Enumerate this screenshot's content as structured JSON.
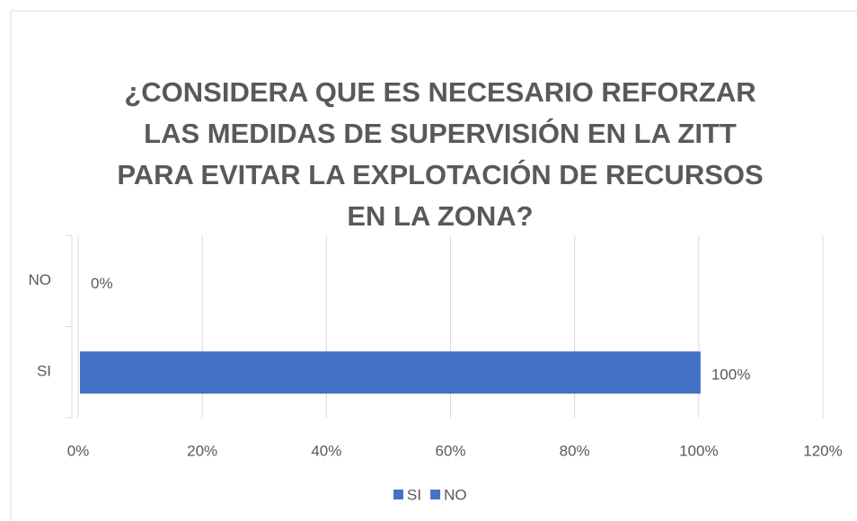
{
  "chart_data": {
    "type": "bar",
    "orientation": "horizontal",
    "title": "¿CONSIDERA QUE ES NECESARIO REFORZAR LAS MEDIDAS DE SUPERVISIÓN EN LA ZITT PARA EVITAR LA EXPLOTACIÓN DE RECURSOS EN LA ZONA?",
    "categories": [
      "SI",
      "NO"
    ],
    "series": [
      {
        "name": "SI",
        "color": "#4472c4",
        "values": [
          100,
          null
        ],
        "value_labels": [
          "100%",
          null
        ]
      },
      {
        "name": "NO",
        "color": "#4472c4",
        "values": [
          null,
          0
        ],
        "value_labels": [
          null,
          "0%"
        ]
      }
    ],
    "xlim": [
      0,
      120
    ],
    "xticks": [
      {
        "value": 0,
        "label": "0%"
      },
      {
        "value": 20,
        "label": "20%"
      },
      {
        "value": 40,
        "label": "40%"
      },
      {
        "value": 60,
        "label": "60%"
      },
      {
        "value": 80,
        "label": "80%"
      },
      {
        "value": 100,
        "label": "100%"
      },
      {
        "value": 120,
        "label": "120%"
      }
    ],
    "grid": true,
    "legend": "bottom"
  }
}
